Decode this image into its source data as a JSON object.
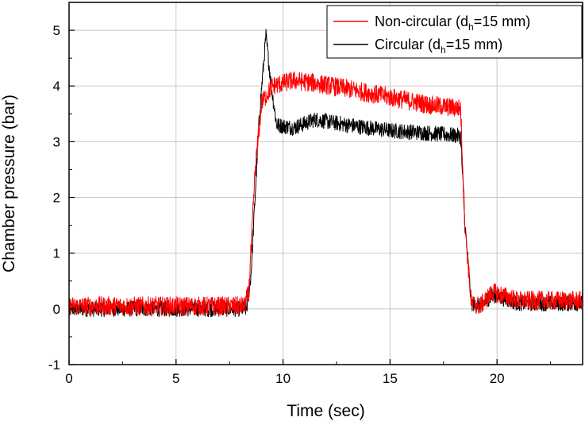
{
  "chart_data": {
    "type": "line",
    "xlabel": "Time (sec)",
    "ylabel": "Chamber pressure (bar)",
    "xlim": [
      0,
      24
    ],
    "ylim": [
      -1,
      5.5
    ],
    "x_ticks": [
      0,
      5,
      10,
      15,
      20
    ],
    "x_minor_step": 2.5,
    "y_ticks": [
      -1,
      0,
      1,
      2,
      3,
      4,
      5
    ],
    "grid": true,
    "legend_position": "top-right",
    "series": [
      {
        "name_main": "Non-circular (d",
        "name_sub": "h",
        "name_tail": "=15 mm)",
        "color": "#ff0000",
        "noise": 0.17,
        "x": [
          0,
          8.2,
          8.4,
          8.7,
          9.0,
          9.5,
          10.5,
          11.5,
          13,
          15,
          17,
          18.3,
          18.5,
          18.8,
          19.2,
          19.8,
          21,
          24
        ],
        "y": [
          0.05,
          0.05,
          0.3,
          2.5,
          3.7,
          4.0,
          4.1,
          4.05,
          3.95,
          3.8,
          3.65,
          3.6,
          1.5,
          0.1,
          0.05,
          0.3,
          0.15,
          0.15
        ]
      },
      {
        "name_main": "Circular (d",
        "name_sub": "h",
        "name_tail": "=15 mm)",
        "color": "#000000",
        "noise": 0.14,
        "x": [
          0,
          8.3,
          8.5,
          8.9,
          9.2,
          9.45,
          9.7,
          10.5,
          11.5,
          13,
          15,
          17,
          18.3,
          18.5,
          18.8,
          19.2,
          19.8,
          21,
          24
        ],
        "y": [
          0.0,
          0.0,
          0.6,
          3.5,
          4.9,
          4.0,
          3.3,
          3.25,
          3.4,
          3.3,
          3.2,
          3.15,
          3.1,
          1.5,
          0.1,
          0.05,
          0.25,
          0.1,
          0.1
        ]
      }
    ]
  }
}
